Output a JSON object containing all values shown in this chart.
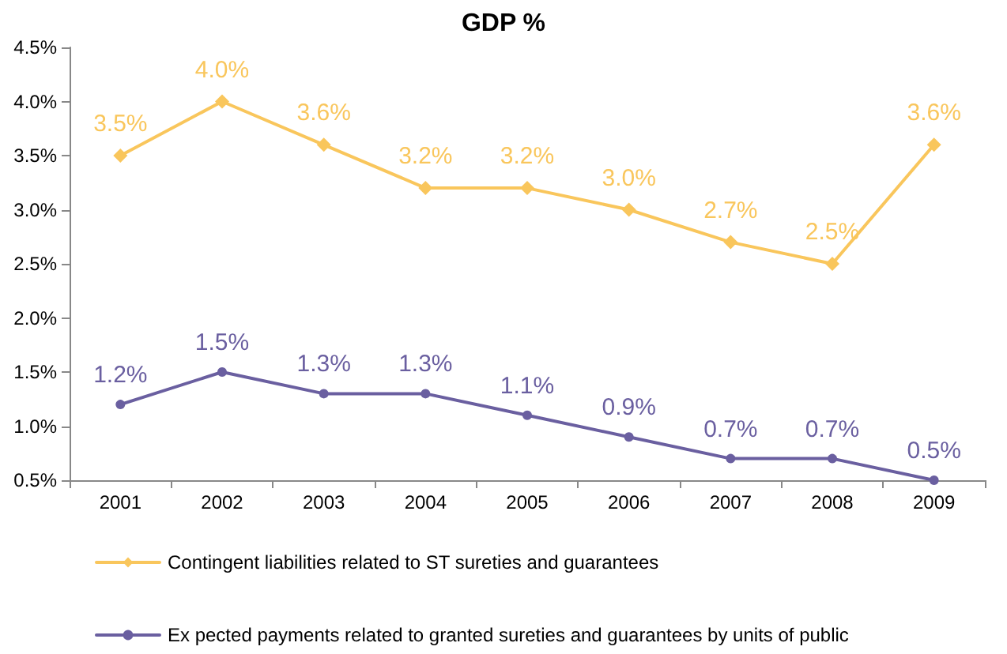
{
  "chart_data": {
    "type": "line",
    "title": "GDP %",
    "categories": [
      "2001",
      "2002",
      "2003",
      "2004",
      "2005",
      "2006",
      "2007",
      "2008",
      "2009"
    ],
    "series": [
      {
        "name": "Contingent liabilities related to ST sureties and guarantees",
        "color": "#f9c65c",
        "marker": "diamond",
        "values": [
          3.5,
          4.0,
          3.6,
          3.2,
          3.2,
          3.0,
          2.7,
          2.5,
          3.6
        ],
        "value_labels": [
          "3.5%",
          "4.0%",
          "3.6%",
          "3.2%",
          "3.2%",
          "3.0%",
          "2.7%",
          "2.5%",
          "3.6%"
        ]
      },
      {
        "name": "Ex pected payments related to granted sureties and guarantees by units of public",
        "color": "#6a5fa0",
        "marker": "circle",
        "values": [
          1.2,
          1.5,
          1.3,
          1.3,
          1.1,
          0.9,
          0.7,
          0.7,
          0.5
        ],
        "value_labels": [
          "1.2%",
          "1.5%",
          "1.3%",
          "1.3%",
          "1.1%",
          "0.9%",
          "0.7%",
          "0.7%",
          "0.5%"
        ]
      }
    ],
    "ylim": [
      0.5,
      4.5
    ],
    "yticks": [
      {
        "value": 0.5,
        "label": "0.5%"
      },
      {
        "value": 1.0,
        "label": "1.0%"
      },
      {
        "value": 1.5,
        "label": "1.5%"
      },
      {
        "value": 2.0,
        "label": "2.0%"
      },
      {
        "value": 2.5,
        "label": "2.5%"
      },
      {
        "value": 3.0,
        "label": "3.0%"
      },
      {
        "value": 3.5,
        "label": "3.5%"
      },
      {
        "value": 4.0,
        "label": "4.0%"
      },
      {
        "value": 4.5,
        "label": "4.5%"
      }
    ],
    "grid": false,
    "legend": "bottom",
    "line_style": "solid"
  }
}
